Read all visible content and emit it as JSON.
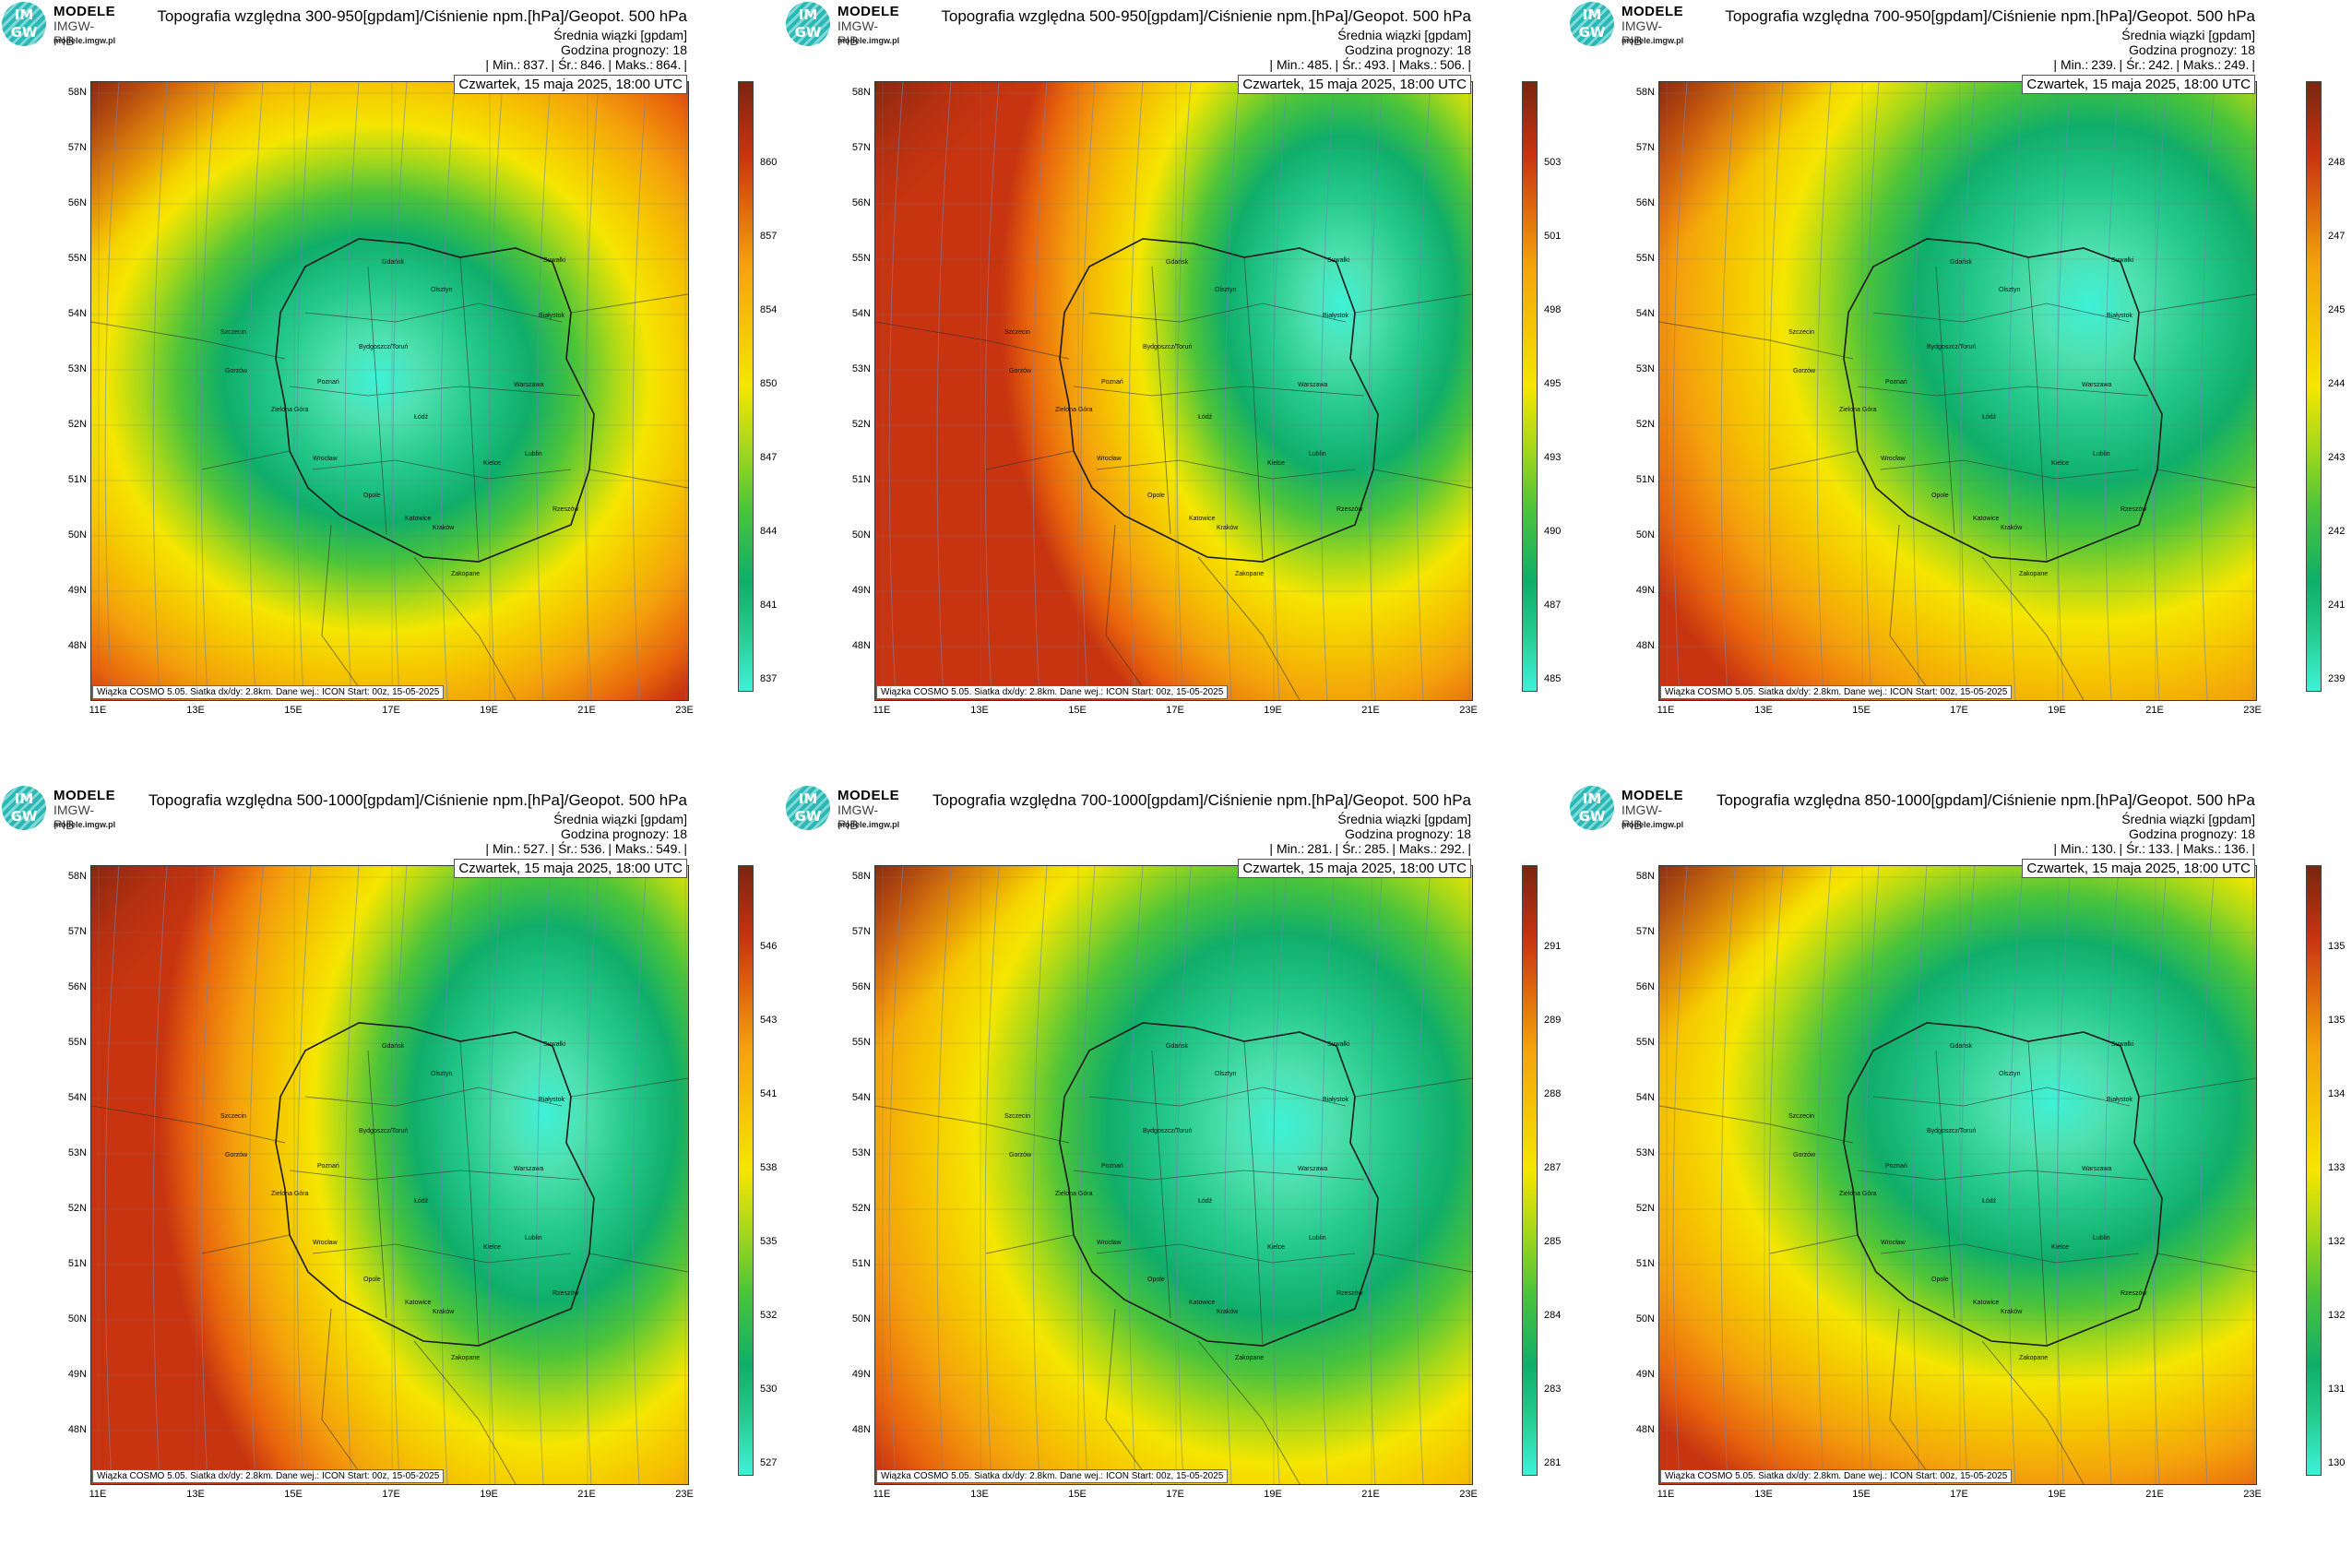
{
  "logo": {
    "brand": "MODELE",
    "sub": "IMGW-PIB",
    "url": "modele.imgw.pl",
    "mark_top": "IM",
    "mark_bottom": "GW"
  },
  "common": {
    "ensemble": "Średnia wiązki [gpdam]",
    "forecast_hour": "Godzina prognozy: 18",
    "date": "Czwartek, 15 maja 2025, 18:00 UTC",
    "credit": "Wiązka COSMO 5.05. Siatka dx/dy: 2.8km. Dane wej.: ICON Start: 00z, 15-05-2025",
    "lat_labels": [
      "58N",
      "57N",
      "56N",
      "55N",
      "54N",
      "53N",
      "52N",
      "51N",
      "50N",
      "49N",
      "48N"
    ],
    "lon_labels": [
      "11E",
      "13E",
      "15E",
      "17E",
      "19E",
      "21E",
      "23E"
    ]
  },
  "panels": [
    {
      "title": "Topografia względna 300-950[gpdam]/Ciśnienie npm.[hPa]/Geopot. 500 hPa",
      "stats": [
        "| Min.:",
        "837.",
        "| Śr.:",
        "846.",
        "| Maks.:",
        "864.",
        "|"
      ],
      "colorbar": [
        "860",
        "857",
        "854",
        "850",
        "847",
        "844",
        "841",
        "837"
      ]
    },
    {
      "title": "Topografia względna 500-950[gpdam]/Ciśnienie npm.[hPa]/Geopot. 500 hPa",
      "stats": [
        "| Min.:",
        "485.",
        "| Śr.:",
        "493.",
        "| Maks.:",
        "506.",
        "|"
      ],
      "colorbar": [
        "503",
        "501",
        "498",
        "495",
        "493",
        "490",
        "487",
        "485"
      ]
    },
    {
      "title": "Topografia względna 700-950[gpdam]/Ciśnienie npm.[hPa]/Geopot. 500 hPa",
      "stats": [
        "| Min.:",
        "239.",
        "| Śr.:",
        "242.",
        "| Maks.:",
        "249.",
        "|"
      ],
      "colorbar": [
        "248",
        "247",
        "245",
        "244",
        "243",
        "242",
        "241",
        "239"
      ]
    },
    {
      "title": "Topografia względna 500-1000[gpdam]/Ciśnienie npm.[hPa]/Geopot. 500 hPa",
      "stats": [
        "| Min.:",
        "527.",
        "| Śr.:",
        "536.",
        "| Maks.:",
        "549.",
        "|"
      ],
      "colorbar": [
        "546",
        "543",
        "541",
        "538",
        "535",
        "532",
        "530",
        "527"
      ]
    },
    {
      "title": "Topografia względna 700-1000[gpdam]/Ciśnienie npm.[hPa]/Geopot. 500 hPa",
      "stats": [
        "| Min.:",
        "281.",
        "| Śr.:",
        "285.",
        "| Maks.:",
        "292.",
        "|"
      ],
      "colorbar": [
        "291",
        "289",
        "288",
        "287",
        "285",
        "284",
        "283",
        "281"
      ]
    },
    {
      "title": "Topografia względna 850-1000[gpdam]/Ciśnienie npm.[hPa]/Geopot. 500 hPa",
      "stats": [
        "| Min.:",
        "130.",
        "| Śr.:",
        "133.",
        "| Maks.:",
        "136.",
        "|"
      ],
      "colorbar": [
        "135",
        "135",
        "134",
        "133",
        "132",
        "132",
        "131",
        "130"
      ]
    }
  ],
  "cities": [
    "Gdańsk",
    "Olsztyn",
    "Białystok",
    "Szczecin",
    "Bydgoszcz/Toruń",
    "Gorzów",
    "Poznań",
    "Warszawa",
    "Zielona Góra",
    "Łódź",
    "Lublin",
    "Wrocław",
    "Kielce",
    "Opole",
    "Katowice",
    "Rzeszów",
    "Kraków",
    "Suwałki",
    "Zakopane"
  ],
  "colors": {
    "low": "#3ef2d8",
    "mid_green": "#0fae6a",
    "yellow": "#f5e600",
    "orange": "#f4a20c",
    "red": "#c83410",
    "dark_red": "#7a2510"
  }
}
